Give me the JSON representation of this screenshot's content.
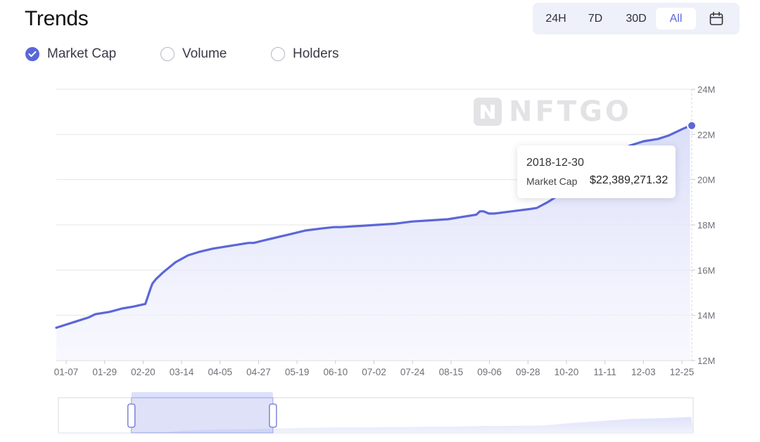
{
  "header": {
    "title": "Trends"
  },
  "ranges": {
    "items": [
      "24H",
      "7D",
      "30D",
      "All"
    ],
    "active": "All",
    "calendar_icon": "calendar-icon"
  },
  "metrics": {
    "items": [
      {
        "label": "Market Cap",
        "checked": true
      },
      {
        "label": "Volume",
        "checked": false
      },
      {
        "label": "Holders",
        "checked": false
      }
    ]
  },
  "watermark": {
    "text": "NFTGO",
    "logo": "nftgo-logo"
  },
  "tooltip": {
    "date": "2018-12-30",
    "label": "Market Cap",
    "value": "$22,389,271.32"
  },
  "colors": {
    "accent": "#5b67d8",
    "area_fill": "#e4e6fb",
    "grid": "#e6e6ea"
  },
  "chart_data": {
    "type": "area",
    "xlabel": "",
    "ylabel": "",
    "x_ticks": [
      "01-07",
      "01-29",
      "02-20",
      "03-14",
      "04-05",
      "04-27",
      "05-19",
      "06-10",
      "07-02",
      "07-24",
      "08-15",
      "09-06",
      "09-28",
      "10-20",
      "11-11",
      "12-03",
      "12-25"
    ],
    "y_ticks": [
      "12M",
      "14M",
      "16M",
      "18M",
      "20M",
      "22M",
      "24M"
    ],
    "ylim": [
      12,
      24
    ],
    "unit": "M",
    "grid": true,
    "y_axis_position": "right",
    "x_day_range": [
      0,
      357
    ],
    "series": [
      {
        "x": [
          0,
          10,
          18,
          22,
          30,
          37,
          43,
          50,
          53,
          54,
          56,
          58,
          60,
          67,
          74,
          80,
          88,
          96,
          104,
          108,
          111,
          116,
          124,
          132,
          140,
          150,
          156,
          160,
          170,
          180,
          190,
          200,
          210,
          220,
          228,
          236,
          238,
          240,
          243,
          246,
          256,
          266,
          270,
          276,
          280,
          284,
          290,
          300,
          310,
          318,
          322,
          330,
          338,
          344,
          352,
          355,
          356
        ],
        "values": [
          13.45,
          13.7,
          13.9,
          14.05,
          14.15,
          14.3,
          14.38,
          14.5,
          15.2,
          15.4,
          15.6,
          15.75,
          15.9,
          16.35,
          16.65,
          16.8,
          16.95,
          17.05,
          17.15,
          17.2,
          17.2,
          17.3,
          17.45,
          17.6,
          17.75,
          17.85,
          17.9,
          17.9,
          17.95,
          18.0,
          18.05,
          18.15,
          18.2,
          18.25,
          18.35,
          18.45,
          18.6,
          18.6,
          18.5,
          18.5,
          18.6,
          18.7,
          18.75,
          19.0,
          19.2,
          19.5,
          19.9,
          20.4,
          20.9,
          21.3,
          21.5,
          21.7,
          21.8,
          21.95,
          22.25,
          22.35,
          22.39
        ]
      }
    ],
    "highlight": {
      "x": 357,
      "value": 22.39
    }
  },
  "navigator": {
    "window_start_fraction": 0.115,
    "window_end_fraction": 0.338
  }
}
